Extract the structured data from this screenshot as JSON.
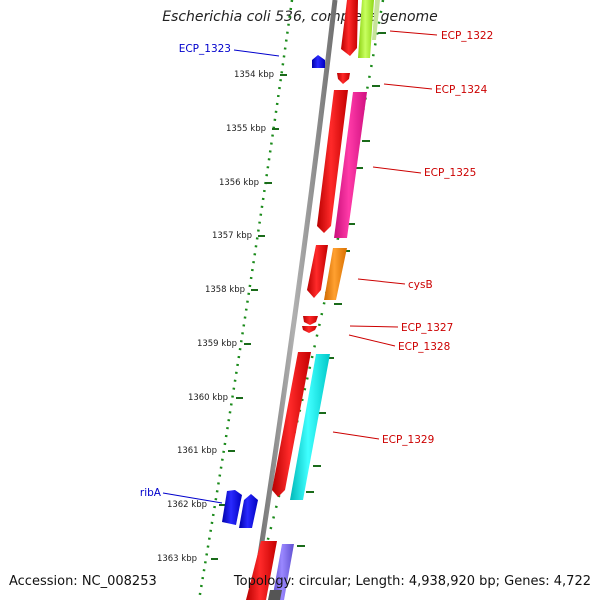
{
  "title": "Escherichia coli 536, complete genome",
  "footer": {
    "accession": "Accession: NC_008253",
    "topology": "Topology: circular; Length: 4,938,920 bp; Genes: 4,722"
  },
  "scale": {
    "unit": "kbp",
    "ticks": [
      "1354 kbp",
      "1355 kbp",
      "1356 kbp",
      "1357 kbp",
      "1358 kbp",
      "1359 kbp",
      "1360 kbp",
      "1361 kbp",
      "1362 kbp",
      "1363 kbp"
    ],
    "tick_color": "#1a6b1a"
  },
  "gene_labels": [
    {
      "name": "ECP_1322",
      "color": "#cc0000"
    },
    {
      "name": "ECP_1323",
      "color": "#0000cc"
    },
    {
      "name": "ECP_1324",
      "color": "#cc0000"
    },
    {
      "name": "ECP_1325",
      "color": "#cc0000"
    },
    {
      "name": "cysB",
      "color": "#cc0000"
    },
    {
      "name": "ECP_1327",
      "color": "#cc0000"
    },
    {
      "name": "ECP_1328",
      "color": "#cc0000"
    },
    {
      "name": "ECP_1329",
      "color": "#cc0000"
    },
    {
      "name": "ribA",
      "color": "#0000cc"
    }
  ],
  "colors": {
    "backbone": "#888888",
    "gene_forward": "#ff0000",
    "gene_reverse": "#0000ff",
    "cds_pink": "#ff1493",
    "cds_orange": "#ff8c00",
    "cds_cyan": "#00e5e5",
    "cds_green": "#adff2f",
    "cds_purple": "#7b68ee"
  }
}
